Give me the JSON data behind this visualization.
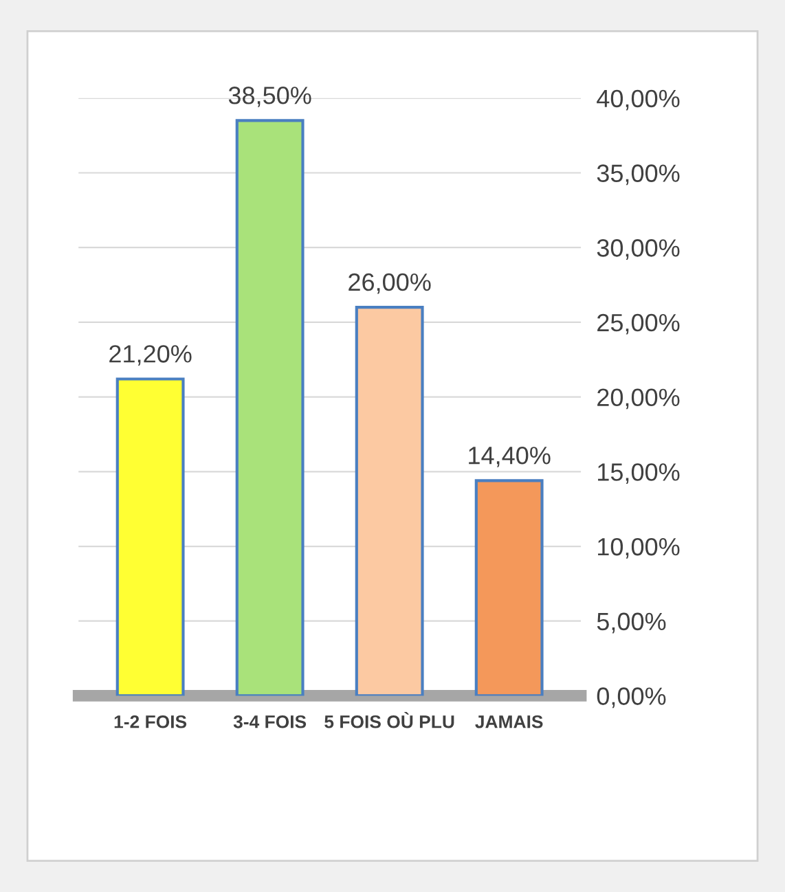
{
  "chart_data": {
    "type": "bar",
    "categories": [
      "1-2 FOIS",
      "3-4 FOIS",
      "5 FOIS OÙ PLU",
      "JAMAIS"
    ],
    "values": [
      21.2,
      38.5,
      26.0,
      14.4
    ],
    "colors": [
      "#ffff33",
      "#a9e27a",
      "#fcc9a2",
      "#f4985a"
    ],
    "value_labels": [
      "21,20%",
      "38,50%",
      "26,00%",
      "14,40%"
    ],
    "ylim": [
      0,
      40
    ],
    "yticks": [
      {
        "value": 0,
        "label": "0,00%"
      },
      {
        "value": 5,
        "label": "5,00%"
      },
      {
        "value": 10,
        "label": "10,00%"
      },
      {
        "value": 15,
        "label": "15,00%"
      },
      {
        "value": 20,
        "label": "20,00%"
      },
      {
        "value": 25,
        "label": "25,00%"
      },
      {
        "value": 30,
        "label": "30,00%"
      },
      {
        "value": 35,
        "label": "35,00%"
      },
      {
        "value": 40,
        "label": "40,00%"
      }
    ],
    "grid": "y"
  }
}
